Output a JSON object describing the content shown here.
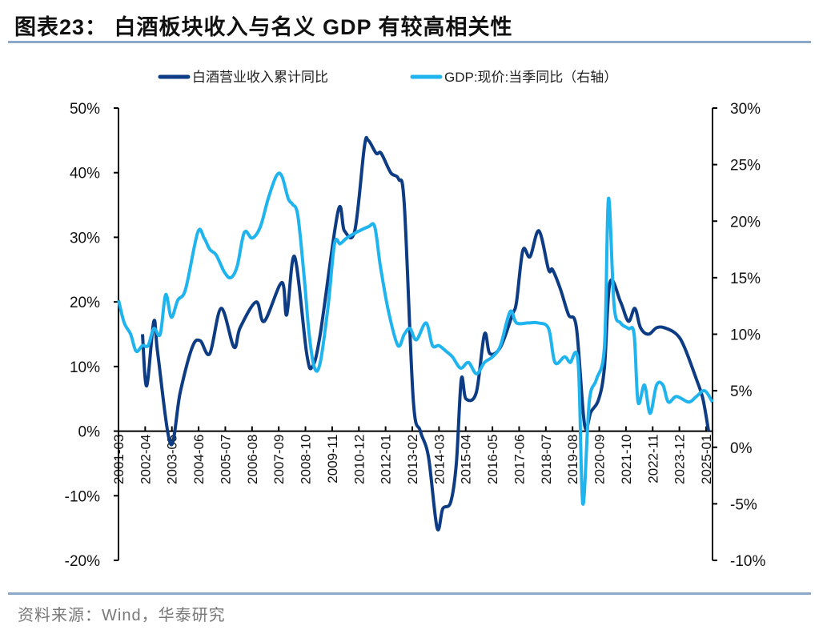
{
  "title": "图表23：  白酒板块收入与名义 GDP 有较高相关性",
  "source": "资料来源：Wind，华泰研究",
  "chart_data": {
    "type": "line",
    "title": "图表23：  白酒板块收入与名义 GDP 有较高相关性",
    "xlabel": "",
    "ylabel": "",
    "x_tick_labels": [
      "2001-03",
      "2002-04",
      "2003-05",
      "2004-06",
      "2005-07",
      "2006-08",
      "2007-09",
      "2008-10",
      "2009-11",
      "2010-12",
      "2012-01",
      "2013-02",
      "2014-03",
      "2015-04",
      "2016-05",
      "2017-06",
      "2018-07",
      "2019-08",
      "2020-09",
      "2021-10",
      "2022-11",
      "2023-12",
      "2025-01"
    ],
    "y_left": {
      "ylim": [
        -20,
        50
      ],
      "ticks": [
        -20,
        -10,
        0,
        10,
        20,
        30,
        40,
        50
      ],
      "tick_labels": [
        "-20%",
        "-10%",
        "0%",
        "10%",
        "20%",
        "30%",
        "40%",
        "50%"
      ]
    },
    "y_right": {
      "ylim": [
        -10,
        30
      ],
      "ticks": [
        -10,
        -5,
        0,
        5,
        10,
        15,
        20,
        25,
        30
      ],
      "tick_labels": [
        "-10%",
        "-5%",
        "0%",
        "5%",
        "10%",
        "15%",
        "20%",
        "25%",
        "30%"
      ]
    },
    "legend_position": "top-center",
    "grid": false,
    "series": [
      {
        "name": "白酒营业收入累计同比",
        "axis": "left",
        "color": "#0d3c84",
        "x": [
          2002.14,
          2002.31,
          2002.6,
          2002.76,
          2003.28,
          2003.67,
          2004.16,
          2004.48,
          2004.87,
          2005.33,
          2005.85,
          2006.1,
          2006.75,
          2007.08,
          2007.79,
          2007.99,
          2008.31,
          2008.8,
          2009.03,
          2009.35,
          2010.07,
          2010.33,
          2010.75,
          2011.14,
          2011.3,
          2011.62,
          2011.82,
          2012.21,
          2012.53,
          2012.76,
          2013.12,
          2013.41,
          2013.74,
          2014.09,
          2014.32,
          2014.64,
          2014.87,
          2015.07,
          2015.26,
          2015.68,
          2016.01,
          2016.23,
          2016.66,
          2017.14,
          2017.31,
          2017.57,
          2017.86,
          2018.22,
          2018.61,
          2018.77,
          2019.09,
          2019.42,
          2019.74,
          2020.07,
          2020.33,
          2020.65,
          2020.88,
          2021.1,
          2021.53,
          2021.85,
          2022.11,
          2022.34,
          2022.66,
          2022.99,
          2023.31,
          2023.8,
          2024.12,
          2024.61,
          2024.87,
          2025.1
        ],
        "values": [
          15,
          7,
          17,
          12,
          -2,
          6,
          13,
          14,
          12,
          19,
          13,
          16,
          20,
          17,
          23,
          18,
          27,
          12,
          10,
          15,
          34,
          31,
          31,
          44,
          45,
          43,
          43,
          40,
          39,
          35,
          5,
          0,
          -4,
          -15,
          -12,
          -11,
          -5,
          8,
          5,
          6,
          15,
          12,
          13,
          18,
          20,
          28,
          27,
          31,
          25,
          25,
          22,
          18,
          16,
          1,
          3,
          5,
          10,
          23,
          20,
          17,
          19,
          16,
          15,
          16,
          16,
          15,
          13,
          8,
          5,
          0
        ]
      },
      {
        "name": "GDP:现价:当季同比（右轴）",
        "axis": "right",
        "color": "#1fb4ee",
        "x": [
          2001.17,
          2001.4,
          2001.66,
          2001.88,
          2002.14,
          2002.37,
          2002.6,
          2002.86,
          2003.08,
          2003.31,
          2003.57,
          2003.89,
          2004.38,
          2004.64,
          2004.87,
          2005.13,
          2005.46,
          2005.72,
          2005.98,
          2006.27,
          2006.59,
          2006.92,
          2007.24,
          2007.57,
          2007.79,
          2008.05,
          2008.22,
          2008.44,
          2008.7,
          2008.9,
          2009.12,
          2009.35,
          2009.67,
          2009.93,
          2010.16,
          2010.42,
          2010.81,
          2011.3,
          2011.56,
          2011.79,
          2012.12,
          2012.5,
          2012.76,
          2012.99,
          2013.25,
          2013.64,
          2013.9,
          2014.16,
          2014.45,
          2014.71,
          2015.04,
          2015.36,
          2015.69,
          2016.01,
          2016.34,
          2016.66,
          2017.05,
          2017.31,
          2017.79,
          2018.18,
          2018.61,
          2018.87,
          2019.26,
          2019.48,
          2019.81,
          2020.0,
          2020.26,
          2020.55,
          2020.88,
          2021.04,
          2021.27,
          2021.53,
          2021.85,
          2022.08,
          2022.24,
          2022.5,
          2022.73,
          2022.99,
          2023.25,
          2023.47,
          2023.8,
          2024.29,
          2024.61,
          2024.94,
          2025.26
        ],
        "values": [
          13,
          11,
          10,
          8.5,
          9,
          9,
          10.5,
          10,
          13.5,
          11.5,
          13,
          14,
          19,
          18.5,
          17.5,
          17,
          15.5,
          15,
          16,
          19,
          18.5,
          19.5,
          22,
          24,
          24,
          22,
          21.5,
          20.5,
          15,
          10,
          7,
          7.5,
          12.5,
          18,
          18,
          18.5,
          19,
          19.5,
          19.5,
          16,
          12,
          9,
          10,
          10.5,
          9.5,
          11,
          9,
          9,
          8.5,
          8,
          7,
          7.5,
          6.5,
          7.5,
          8,
          9,
          12,
          11,
          11,
          11,
          10.5,
          7.5,
          8,
          7.5,
          7.5,
          -5,
          4,
          6,
          9,
          22,
          12.5,
          11,
          10.5,
          10,
          4,
          5.5,
          3,
          5.5,
          5.5,
          4,
          4.5,
          4,
          4.5,
          5,
          4
        ]
      }
    ]
  }
}
